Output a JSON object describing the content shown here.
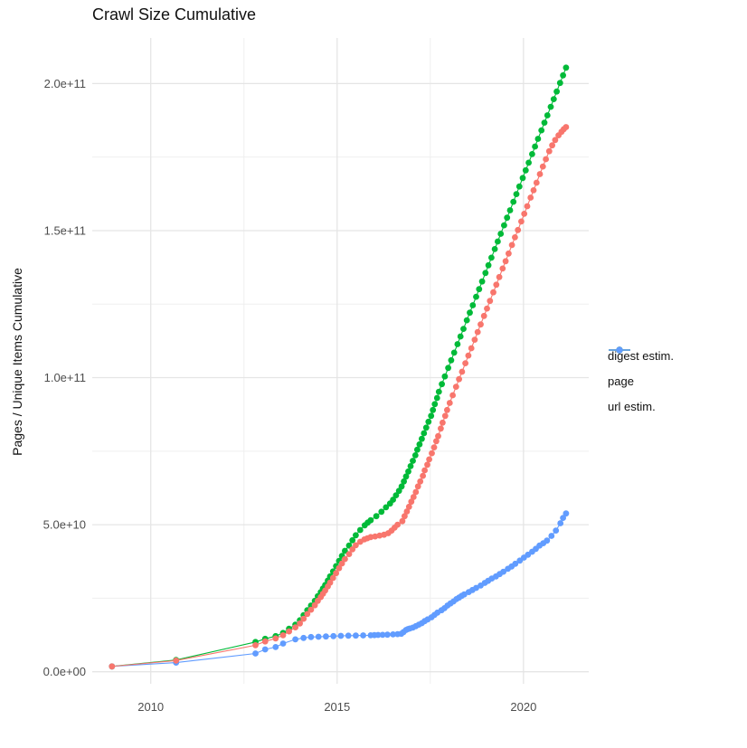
{
  "title": "Crawl Size Cumulative",
  "legend": {
    "items": [
      {
        "label": "digest estim.",
        "color": "#F8766D"
      },
      {
        "label": "page",
        "color": "#00BA38"
      },
      {
        "label": "url estim.",
        "color": "#619CFF"
      }
    ]
  },
  "chart_data": {
    "type": "scatter",
    "title": "Crawl Size Cumulative",
    "xlabel": "",
    "ylabel": "Pages / Unique Items Cumulative",
    "values_unit": "billions (1e9 items); x = decimal year",
    "xlim": [
      2008.43,
      2021.75
    ],
    "ylim_billions": [
      -4.1,
      215.5
    ],
    "grid": "major and minor, light gray on white",
    "legend_position": "right",
    "x_ticks": [
      {
        "value": 2010,
        "label": "2010"
      },
      {
        "value": 2015,
        "label": "2015"
      },
      {
        "value": 2020,
        "label": "2020"
      }
    ],
    "x_minor": [
      2012.5,
      2017.5
    ],
    "y_ticks": [
      {
        "value": 0,
        "label": "0.0e+00"
      },
      {
        "value": 50,
        "label": "5.0e+10"
      },
      {
        "value": 100,
        "label": "1.0e+11"
      },
      {
        "value": 150,
        "label": "1.5e+11"
      },
      {
        "value": 200,
        "label": "2.0e+11"
      }
    ],
    "y_minor": [
      25,
      75,
      125,
      175
    ],
    "series": [
      {
        "name": "page",
        "color": "#00BA38",
        "points": [
          [
            2008.96,
            1.8
          ],
          [
            2010.68,
            4.0
          ],
          [
            2012.81,
            10.1
          ],
          [
            2013.07,
            11.2
          ],
          [
            2013.35,
            12.1
          ],
          [
            2013.55,
            13.2
          ],
          [
            2013.71,
            14.6
          ],
          [
            2013.88,
            16.0
          ],
          [
            2014.0,
            17.5
          ],
          [
            2014.1,
            19.2
          ],
          [
            2014.2,
            20.9
          ],
          [
            2014.3,
            22.5
          ],
          [
            2014.4,
            24.1
          ],
          [
            2014.48,
            25.7
          ],
          [
            2014.56,
            27.1
          ],
          [
            2014.62,
            28.3
          ],
          [
            2014.68,
            29.5
          ],
          [
            2014.75,
            31.0
          ],
          [
            2014.81,
            32.4
          ],
          [
            2014.89,
            34.1
          ],
          [
            2014.97,
            35.9
          ],
          [
            2015.05,
            37.7
          ],
          [
            2015.13,
            39.4
          ],
          [
            2015.21,
            41.1
          ],
          [
            2015.32,
            42.9
          ],
          [
            2015.41,
            44.7
          ],
          [
            2015.5,
            46.4
          ],
          [
            2015.62,
            48.2
          ],
          [
            2015.74,
            49.8
          ],
          [
            2015.82,
            50.7
          ],
          [
            2015.9,
            51.5
          ],
          [
            2016.05,
            52.9
          ],
          [
            2016.19,
            54.4
          ],
          [
            2016.31,
            55.9
          ],
          [
            2016.42,
            57.2
          ],
          [
            2016.5,
            58.5
          ],
          [
            2016.58,
            60.0
          ],
          [
            2016.66,
            61.5
          ],
          [
            2016.73,
            63.0
          ],
          [
            2016.79,
            64.7
          ],
          [
            2016.85,
            66.4
          ],
          [
            2016.91,
            68.1
          ],
          [
            2016.97,
            69.9
          ],
          [
            2017.03,
            71.7
          ],
          [
            2017.1,
            73.6
          ],
          [
            2017.15,
            75.5
          ],
          [
            2017.21,
            77.3
          ],
          [
            2017.27,
            79.2
          ],
          [
            2017.33,
            81.1
          ],
          [
            2017.39,
            83.0
          ],
          [
            2017.45,
            85.0
          ],
          [
            2017.52,
            87.0
          ],
          [
            2017.57,
            89.0
          ],
          [
            2017.62,
            91.0
          ],
          [
            2017.68,
            93.1
          ],
          [
            2017.73,
            95.2
          ],
          [
            2017.81,
            97.8
          ],
          [
            2017.89,
            100.4
          ],
          [
            2017.98,
            103.3
          ],
          [
            2018.06,
            105.9
          ],
          [
            2018.14,
            108.5
          ],
          [
            2018.23,
            111.4
          ],
          [
            2018.31,
            114.0
          ],
          [
            2018.39,
            116.6
          ],
          [
            2018.48,
            119.5
          ],
          [
            2018.56,
            122.1
          ],
          [
            2018.64,
            124.6
          ],
          [
            2018.73,
            127.5
          ],
          [
            2018.81,
            130.1
          ],
          [
            2018.89,
            132.7
          ],
          [
            2018.98,
            135.6
          ],
          [
            2019.06,
            138.2
          ],
          [
            2019.14,
            140.8
          ],
          [
            2019.23,
            143.7
          ],
          [
            2019.31,
            146.3
          ],
          [
            2019.39,
            148.9
          ],
          [
            2019.48,
            151.8
          ],
          [
            2019.56,
            154.4
          ],
          [
            2019.64,
            156.9
          ],
          [
            2019.73,
            159.8
          ],
          [
            2019.81,
            162.4
          ],
          [
            2019.89,
            165.0
          ],
          [
            2019.98,
            167.9
          ],
          [
            2020.06,
            170.5
          ],
          [
            2020.14,
            173.1
          ],
          [
            2020.23,
            176.0
          ],
          [
            2020.31,
            178.6
          ],
          [
            2020.39,
            181.2
          ],
          [
            2020.48,
            184.1
          ],
          [
            2020.56,
            186.7
          ],
          [
            2020.64,
            189.2
          ],
          [
            2020.73,
            192.1
          ],
          [
            2020.81,
            194.7
          ],
          [
            2020.89,
            197.3
          ],
          [
            2020.98,
            200.2
          ],
          [
            2021.06,
            202.8
          ],
          [
            2021.14,
            205.4
          ]
        ]
      },
      {
        "name": "url estim.",
        "color": "#619CFF",
        "points": [
          [
            2008.96,
            1.8
          ],
          [
            2010.68,
            3.1
          ],
          [
            2012.81,
            6.2
          ],
          [
            2013.07,
            7.6
          ],
          [
            2013.35,
            8.4
          ],
          [
            2013.55,
            9.6
          ],
          [
            2013.88,
            11.0
          ],
          [
            2014.1,
            11.5
          ],
          [
            2014.3,
            11.8
          ],
          [
            2014.5,
            11.9
          ],
          [
            2014.7,
            12.0
          ],
          [
            2014.9,
            12.1
          ],
          [
            2015.1,
            12.2
          ],
          [
            2015.3,
            12.25
          ],
          [
            2015.5,
            12.3
          ],
          [
            2015.7,
            12.35
          ],
          [
            2015.9,
            12.4
          ],
          [
            2016.0,
            12.45
          ],
          [
            2016.1,
            12.5
          ],
          [
            2016.22,
            12.55
          ],
          [
            2016.35,
            12.6
          ],
          [
            2016.5,
            12.7
          ],
          [
            2016.62,
            12.8
          ],
          [
            2016.72,
            12.9
          ],
          [
            2016.78,
            13.5
          ],
          [
            2016.85,
            14.2
          ],
          [
            2016.9,
            14.5
          ],
          [
            2016.95,
            14.7
          ],
          [
            2017.03,
            15.0
          ],
          [
            2017.11,
            15.5
          ],
          [
            2017.19,
            16.0
          ],
          [
            2017.27,
            16.5
          ],
          [
            2017.35,
            17.2
          ],
          [
            2017.43,
            17.8
          ],
          [
            2017.53,
            18.5
          ],
          [
            2017.61,
            19.3
          ],
          [
            2017.69,
            20.1
          ],
          [
            2017.8,
            20.9
          ],
          [
            2017.88,
            21.6
          ],
          [
            2017.96,
            22.5
          ],
          [
            2018.04,
            23.2
          ],
          [
            2018.12,
            23.9
          ],
          [
            2018.2,
            24.7
          ],
          [
            2018.27,
            25.2
          ],
          [
            2018.34,
            25.8
          ],
          [
            2018.41,
            26.3
          ],
          [
            2018.53,
            27.1
          ],
          [
            2018.63,
            27.8
          ],
          [
            2018.73,
            28.5
          ],
          [
            2018.85,
            29.3
          ],
          [
            2018.96,
            30.2
          ],
          [
            2019.05,
            30.9
          ],
          [
            2019.15,
            31.7
          ],
          [
            2019.26,
            32.4
          ],
          [
            2019.36,
            33.2
          ],
          [
            2019.46,
            34.0
          ],
          [
            2019.58,
            35.0
          ],
          [
            2019.68,
            35.8
          ],
          [
            2019.78,
            36.7
          ],
          [
            2019.9,
            37.8
          ],
          [
            2020.01,
            38.8
          ],
          [
            2020.12,
            39.8
          ],
          [
            2020.23,
            40.8
          ],
          [
            2020.33,
            41.8
          ],
          [
            2020.43,
            42.9
          ],
          [
            2020.53,
            43.7
          ],
          [
            2020.63,
            44.6
          ],
          [
            2020.75,
            46.2
          ],
          [
            2020.87,
            48.0
          ],
          [
            2020.99,
            50.5
          ],
          [
            2021.06,
            52.3
          ],
          [
            2021.14,
            53.8
          ]
        ]
      },
      {
        "name": "digest estim.",
        "color": "#F8766D",
        "points": [
          [
            2008.96,
            1.8
          ],
          [
            2010.68,
            3.8
          ],
          [
            2012.81,
            9.0
          ],
          [
            2013.07,
            10.3
          ],
          [
            2013.35,
            11.3
          ],
          [
            2013.55,
            12.4
          ],
          [
            2013.71,
            13.7
          ],
          [
            2013.88,
            15.1
          ],
          [
            2014.0,
            16.4
          ],
          [
            2014.1,
            18.0
          ],
          [
            2014.2,
            19.6
          ],
          [
            2014.3,
            21.1
          ],
          [
            2014.4,
            22.6
          ],
          [
            2014.48,
            24.1
          ],
          [
            2014.56,
            25.4
          ],
          [
            2014.62,
            26.5
          ],
          [
            2014.68,
            27.6
          ],
          [
            2014.75,
            29.0
          ],
          [
            2014.81,
            30.3
          ],
          [
            2014.89,
            31.9
          ],
          [
            2014.97,
            33.5
          ],
          [
            2015.05,
            35.2
          ],
          [
            2015.13,
            36.8
          ],
          [
            2015.21,
            38.3
          ],
          [
            2015.32,
            40.0
          ],
          [
            2015.41,
            41.6
          ],
          [
            2015.5,
            43.0
          ],
          [
            2015.62,
            44.2
          ],
          [
            2015.73,
            45.0
          ],
          [
            2015.81,
            45.4
          ],
          [
            2015.9,
            45.8
          ],
          [
            2016.02,
            46.0
          ],
          [
            2016.14,
            46.3
          ],
          [
            2016.26,
            46.6
          ],
          [
            2016.37,
            47.1
          ],
          [
            2016.46,
            48.0
          ],
          [
            2016.54,
            49.0
          ],
          [
            2016.62,
            50.0
          ],
          [
            2016.75,
            51.2
          ],
          [
            2016.81,
            52.9
          ],
          [
            2016.87,
            54.5
          ],
          [
            2016.93,
            56.1
          ],
          [
            2016.99,
            57.8
          ],
          [
            2017.05,
            59.4
          ],
          [
            2017.11,
            61.1
          ],
          [
            2017.17,
            63.0
          ],
          [
            2017.23,
            64.7
          ],
          [
            2017.3,
            66.6
          ],
          [
            2017.35,
            68.5
          ],
          [
            2017.42,
            70.4
          ],
          [
            2017.47,
            72.2
          ],
          [
            2017.54,
            74.3
          ],
          [
            2017.6,
            76.3
          ],
          [
            2017.66,
            78.4
          ],
          [
            2017.71,
            80.1
          ],
          [
            2017.78,
            82.7
          ],
          [
            2017.83,
            84.7
          ],
          [
            2017.9,
            87.0
          ],
          [
            2017.95,
            89.0
          ],
          [
            2018.02,
            91.4
          ],
          [
            2018.1,
            94.0
          ],
          [
            2018.19,
            96.9
          ],
          [
            2018.27,
            99.5
          ],
          [
            2018.35,
            102.0
          ],
          [
            2018.44,
            104.9
          ],
          [
            2018.52,
            107.5
          ],
          [
            2018.6,
            110.0
          ],
          [
            2018.69,
            112.9
          ],
          [
            2018.77,
            115.5
          ],
          [
            2018.85,
            118.1
          ],
          [
            2018.94,
            121.0
          ],
          [
            2019.02,
            123.5
          ],
          [
            2019.1,
            126.1
          ],
          [
            2019.19,
            129.0
          ],
          [
            2019.27,
            131.6
          ],
          [
            2019.35,
            134.2
          ],
          [
            2019.44,
            137.1
          ],
          [
            2019.52,
            139.6
          ],
          [
            2019.6,
            142.2
          ],
          [
            2019.69,
            145.1
          ],
          [
            2019.77,
            147.7
          ],
          [
            2019.85,
            150.2
          ],
          [
            2019.94,
            153.1
          ],
          [
            2020.02,
            155.7
          ],
          [
            2020.1,
            158.3
          ],
          [
            2020.19,
            161.2
          ],
          [
            2020.27,
            163.7
          ],
          [
            2020.35,
            166.3
          ],
          [
            2020.44,
            169.2
          ],
          [
            2020.52,
            171.8
          ],
          [
            2020.6,
            174.3
          ],
          [
            2020.69,
            177.0
          ],
          [
            2020.77,
            179.0
          ],
          [
            2020.85,
            180.8
          ],
          [
            2020.94,
            182.4
          ],
          [
            2021.02,
            183.6
          ],
          [
            2021.08,
            184.5
          ],
          [
            2021.14,
            185.2
          ]
        ]
      }
    ]
  }
}
